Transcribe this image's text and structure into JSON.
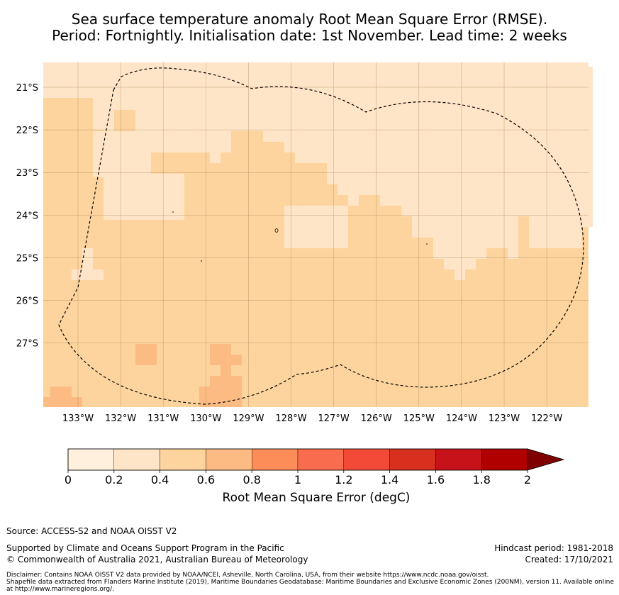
{
  "title": {
    "line1": "Sea surface temperature anomaly Root Mean Square Error (RMSE).",
    "line2": "Period: Fortnightly. Initialisation date: 1st November. Lead time: 2 weeks"
  },
  "map": {
    "lat_labels": [
      "21°S",
      "22°S",
      "23°S",
      "24°S",
      "25°S",
      "26°S",
      "27°S"
    ],
    "lon_labels": [
      "133°W",
      "132°W",
      "131°W",
      "130°W",
      "129°W",
      "128°W",
      "127°W",
      "126°W",
      "125°W",
      "124°W",
      "123°W",
      "122°W"
    ],
    "extent": {
      "lon_min": -133.8,
      "lon_max": -121.0,
      "lat_min": -28.5,
      "lat_max": -20.4
    },
    "cell_deg": 0.25,
    "background_value": 0.5
  },
  "colorbar": {
    "title": "Root Mean Square Error (degC)",
    "ticks": [
      "0",
      "0.2",
      "0.4",
      "0.6",
      "0.8",
      "1",
      "1.2",
      "1.4",
      "1.6",
      "1.8",
      "2"
    ],
    "colors": [
      "#fff0dd",
      "#ffe5c7",
      "#fdd49e",
      "#fdbb84",
      "#fc8d59",
      "#fa6c4e",
      "#f24a36",
      "#d7301f",
      "#c7121a",
      "#b00000",
      "#7f0000"
    ]
  },
  "footer": {
    "source": "Source: ACCESS-S2 and NOAA OISST V2",
    "support": "Supported by Climate and Oceans Support Program in the Pacific",
    "copyright": "© Commonwealth of Australia 2021, Australian Bureau of Meteorology",
    "hindcast": "Hindcast period: 1981-2018",
    "created": "Created: 17/10/2021",
    "disclaimer1": "Disclaimer: Contains NOAA OISST V2 data provided by NOAA/NCEI, Asheville, North Carolina, USA, from their website https://www.ncdc.noaa.gov/oisst.",
    "disclaimer2": "Shapefile data extracted from Flanders Marine Institute (2019), Maritime Boundaries Geodatabase: Maritime Boundaries and Exclusive Economic Zones (200NM), version 11. Available online at http://www.marineregions.org/."
  }
}
